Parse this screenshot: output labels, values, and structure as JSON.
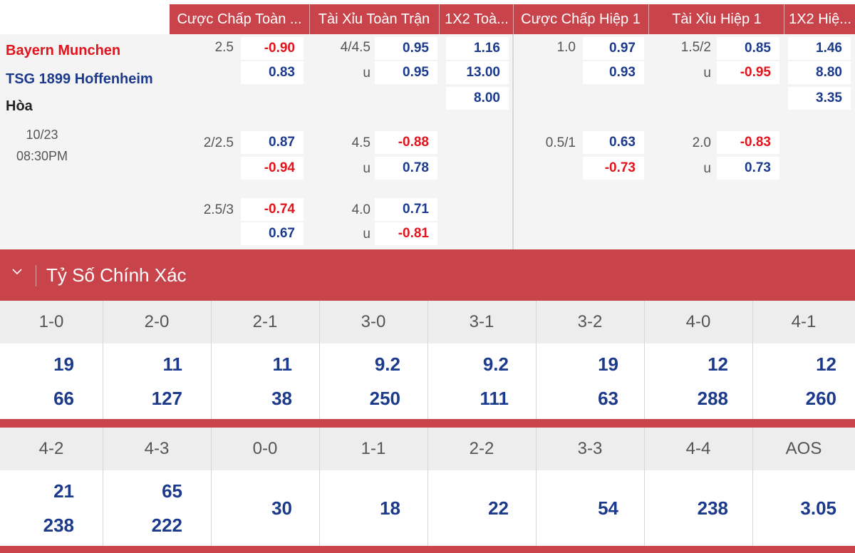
{
  "header": {
    "cols": [
      "Cược Chấp Toàn ...",
      "Tài Xỉu Toàn Trận",
      "1X2 Toà...",
      "Cược Chấp Hiệp 1",
      "Tài Xỉu Hiệp 1",
      "1X2 Hiệ..."
    ]
  },
  "match": {
    "home": "Bayern Munchen",
    "away": "TSG 1899 Hoffenheim",
    "draw": "Hòa",
    "date": "10/23",
    "time": "08:30PM"
  },
  "odds": {
    "ft_hdp": [
      {
        "line": "2.5",
        "home": "-0.90",
        "away": "0.83"
      },
      {
        "line": "2/2.5",
        "home": "0.87",
        "away": "-0.94"
      },
      {
        "line": "2.5/3",
        "home": "-0.74",
        "away": "0.67"
      }
    ],
    "ft_ou": [
      {
        "line": "4/4.5",
        "over": "0.95",
        "u": "u",
        "under": "0.95"
      },
      {
        "line": "4.5",
        "over": "-0.88",
        "u": "u",
        "under": "0.78"
      },
      {
        "line": "4.0",
        "over": "0.71",
        "u": "u",
        "under": "-0.81"
      }
    ],
    "ft_1x2": [
      "1.16",
      "13.00",
      "8.00"
    ],
    "h1_hdp": [
      {
        "line": "1.0",
        "home": "0.97",
        "away": "0.93"
      },
      {
        "line": "0.5/1",
        "home": "0.63",
        "away": "-0.73"
      }
    ],
    "h1_ou": [
      {
        "line": "1.5/2",
        "over": "0.85",
        "u": "u",
        "under": "-0.95"
      },
      {
        "line": "2.0",
        "over": "-0.83",
        "u": "u",
        "under": "0.73"
      }
    ],
    "h1_1x2": [
      "1.46",
      "8.80",
      "3.35"
    ]
  },
  "correct_score": {
    "title": "Tỷ Số Chính Xác",
    "row1": [
      {
        "score": "1-0",
        "a": "19",
        "b": "66"
      },
      {
        "score": "2-0",
        "a": "11",
        "b": "127"
      },
      {
        "score": "2-1",
        "a": "11",
        "b": "38"
      },
      {
        "score": "3-0",
        "a": "9.2",
        "b": "250"
      },
      {
        "score": "3-1",
        "a": "9.2",
        "b": "111"
      },
      {
        "score": "3-2",
        "a": "19",
        "b": "63"
      },
      {
        "score": "4-0",
        "a": "12",
        "b": "288"
      },
      {
        "score": "4-1",
        "a": "12",
        "b": "260"
      }
    ],
    "row2": [
      {
        "score": "4-2",
        "a": "21",
        "b": "238"
      },
      {
        "score": "4-3",
        "a": "65",
        "b": "222"
      },
      {
        "score": "0-0",
        "v": "30"
      },
      {
        "score": "1-1",
        "v": "18"
      },
      {
        "score": "2-2",
        "v": "22"
      },
      {
        "score": "3-3",
        "v": "54"
      },
      {
        "score": "4-4",
        "v": "238"
      },
      {
        "score": "AOS",
        "v": "3.05"
      }
    ]
  },
  "colors": {
    "accent": "#c9444a",
    "positive": "#1c3a8c",
    "negative": "#e0141c"
  }
}
